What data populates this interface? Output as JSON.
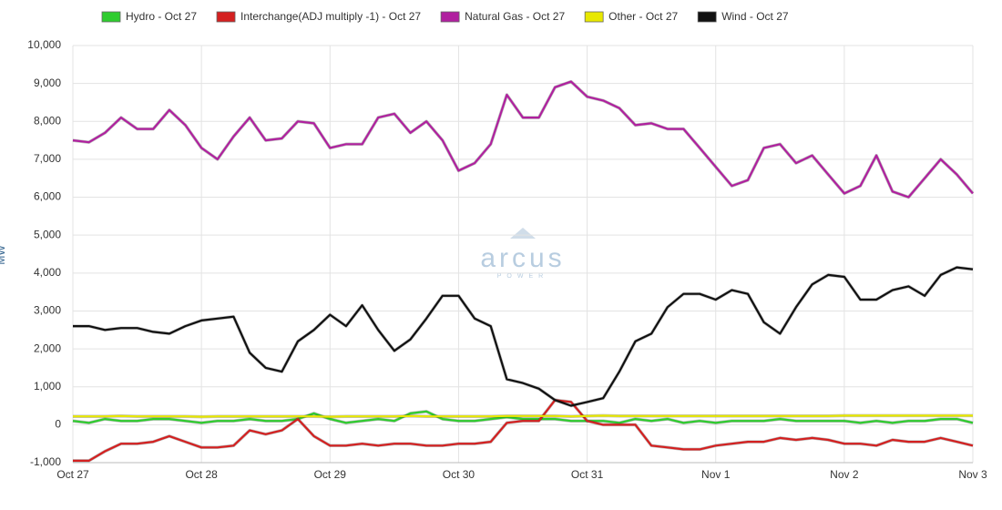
{
  "chart_data": {
    "type": "line",
    "y_label": "MW",
    "watermark": "arcus",
    "watermark_sub": "POWER",
    "legend": "top",
    "grid": true,
    "categories": [
      "Oct 27",
      null,
      null,
      null,
      null,
      null,
      null,
      null,
      "Oct 28",
      null,
      null,
      null,
      null,
      null,
      null,
      null,
      "Oct 29",
      null,
      null,
      null,
      null,
      null,
      null,
      null,
      "Oct 30",
      null,
      null,
      null,
      null,
      null,
      null,
      null,
      "Oct 31",
      null,
      null,
      null,
      null,
      null,
      null,
      null,
      "Nov 1",
      null,
      null,
      null,
      null,
      null,
      null,
      null,
      "Nov 2",
      null,
      null,
      null,
      null,
      null,
      null,
      null,
      "Nov 3"
    ],
    "ylim": [
      -1000,
      10000
    ],
    "yticks": [
      {
        "value": -1000,
        "label": "-1,000"
      },
      0,
      {
        "value": 1000,
        "label": "1,000"
      },
      {
        "value": 2000,
        "label": "2,000"
      },
      {
        "value": 3000,
        "label": "3,000"
      },
      {
        "value": 4000,
        "label": "4,000"
      },
      {
        "value": 5000,
        "label": "5,000"
      },
      {
        "value": 6000,
        "label": "6,000"
      },
      {
        "value": 7000,
        "label": "7,000"
      },
      {
        "value": 8000,
        "label": "8,000"
      },
      {
        "value": 9000,
        "label": "9,000"
      },
      {
        "value": 10000,
        "label": "10,000"
      }
    ],
    "series": [
      {
        "name": "Hydro - Oct 27",
        "color": "#2ecc2e",
        "values": [
          100,
          50,
          150,
          100,
          100,
          150,
          150,
          100,
          50,
          100,
          100,
          150,
          100,
          100,
          150,
          300,
          150,
          50,
          100,
          150,
          100,
          300,
          350,
          150,
          100,
          100,
          150,
          200,
          150,
          150,
          150,
          100,
          100,
          100,
          50,
          150,
          100,
          150,
          50,
          100,
          50,
          100,
          100,
          100,
          150,
          100,
          100,
          100,
          100,
          50,
          100,
          50,
          100,
          100,
          150,
          150,
          50
        ]
      },
      {
        "name": "Interchange(ADJ multiply -1) - Oct 27",
        "color": "#d42020",
        "values": [
          -950,
          -950,
          -700,
          -500,
          -500,
          -450,
          -300,
          -450,
          -600,
          -600,
          -550,
          -150,
          -250,
          -150,
          150,
          -300,
          -550,
          -550,
          -500,
          -550,
          -500,
          -500,
          -550,
          -550,
          -500,
          -500,
          -450,
          50,
          100,
          100,
          650,
          600,
          100,
          0,
          0,
          0,
          -550,
          -600,
          -650,
          -650,
          -550,
          -500,
          -450,
          -450,
          -350,
          -400,
          -350,
          -400,
          -500,
          -500,
          -550,
          -400,
          -450,
          -450,
          -350,
          -450,
          -550
        ]
      },
      {
        "name": "Natural Gas - Oct 27",
        "color": "#b0209f",
        "values": [
          7500,
          7450,
          7700,
          8100,
          7800,
          7800,
          8300,
          7900,
          7300,
          7000,
          7600,
          8100,
          7500,
          7550,
          8000,
          7950,
          7300,
          7400,
          7400,
          8100,
          8200,
          7700,
          8000,
          7500,
          6700,
          6900,
          7400,
          8700,
          8100,
          8100,
          8900,
          9050,
          8650,
          8550,
          8350,
          7900,
          7950,
          7800,
          7800,
          7300,
          6800,
          6300,
          6450,
          7300,
          7400,
          6900,
          7100,
          6600,
          6100,
          6300,
          7100,
          6150,
          6000,
          6500,
          7000,
          6600,
          6100
        ]
      },
      {
        "name": "Other - Oct 27",
        "color": "#e8e800",
        "values": [
          220,
          220,
          220,
          230,
          220,
          220,
          220,
          220,
          210,
          220,
          220,
          220,
          220,
          220,
          220,
          220,
          210,
          220,
          220,
          220,
          220,
          230,
          220,
          220,
          220,
          220,
          220,
          230,
          230,
          230,
          230,
          220,
          230,
          240,
          230,
          230,
          230,
          230,
          230,
          230,
          230,
          230,
          230,
          230,
          230,
          230,
          230,
          230,
          240,
          240,
          240,
          240,
          240,
          240,
          240,
          240,
          240
        ]
      },
      {
        "name": "Wind - Oct 27",
        "color": "#111111",
        "values": [
          2600,
          2600,
          2500,
          2550,
          2550,
          2450,
          2400,
          2600,
          2750,
          2800,
          2850,
          1900,
          1500,
          1400,
          2200,
          2500,
          2900,
          2600,
          3150,
          2500,
          1950,
          2250,
          2800,
          3400,
          3400,
          2800,
          2600,
          1200,
          1100,
          950,
          650,
          500,
          600,
          700,
          1400,
          2200,
          2400,
          3100,
          3450,
          3450,
          3300,
          3550,
          3450,
          2700,
          2400,
          3100,
          3700,
          3950,
          3900,
          3300,
          3300,
          3550,
          3650,
          3400,
          3950,
          4150,
          4100
        ]
      }
    ]
  }
}
